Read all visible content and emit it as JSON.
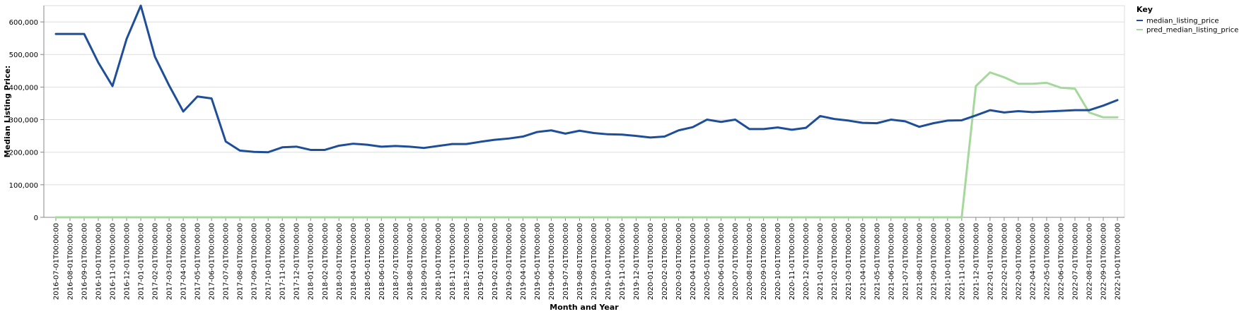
{
  "chart_data": {
    "type": "line",
    "xlabel": "Month and Year",
    "ylabel": "Median Listing Price:",
    "ylim": [
      0,
      650000
    ],
    "yticks": [
      0,
      100000,
      200000,
      300000,
      400000,
      500000,
      600000
    ],
    "ytick_labels": [
      "0",
      "100,000",
      "200,000",
      "300,000",
      "400,000",
      "500,000",
      "600,000"
    ],
    "grid": true,
    "legend": {
      "title": "Key",
      "placement": "right"
    },
    "categories": [
      "2016-07-01T00:00:00",
      "2016-08-01T00:00:00",
      "2016-09-01T00:00:00",
      "2016-10-01T00:00:00",
      "2016-11-01T00:00:00",
      "2016-12-01T00:00:00",
      "2017-01-01T00:00:00",
      "2017-02-01T00:00:00",
      "2017-03-01T00:00:00",
      "2017-04-01T00:00:00",
      "2017-05-01T00:00:00",
      "2017-06-01T00:00:00",
      "2017-07-01T00:00:00",
      "2017-08-01T00:00:00",
      "2017-09-01T00:00:00",
      "2017-10-01T00:00:00",
      "2017-11-01T00:00:00",
      "2017-12-01T00:00:00",
      "2018-01-01T00:00:00",
      "2018-02-01T00:00:00",
      "2018-03-01T00:00:00",
      "2018-04-01T00:00:00",
      "2018-05-01T00:00:00",
      "2018-06-01T00:00:00",
      "2018-07-01T00:00:00",
      "2018-08-01T00:00:00",
      "2018-09-01T00:00:00",
      "2018-10-01T00:00:00",
      "2018-11-01T00:00:00",
      "2018-12-01T00:00:00",
      "2019-01-01T00:00:00",
      "2019-02-01T00:00:00",
      "2019-03-01T00:00:00",
      "2019-04-01T00:00:00",
      "2019-05-01T00:00:00",
      "2019-06-01T00:00:00",
      "2019-07-01T00:00:00",
      "2019-08-01T00:00:00",
      "2019-09-01T00:00:00",
      "2019-10-01T00:00:00",
      "2019-11-01T00:00:00",
      "2019-12-01T00:00:00",
      "2020-01-01T00:00:00",
      "2020-02-01T00:00:00",
      "2020-03-01T00:00:00",
      "2020-04-01T00:00:00",
      "2020-05-01T00:00:00",
      "2020-06-01T00:00:00",
      "2020-07-01T00:00:00",
      "2020-08-01T00:00:00",
      "2020-09-01T00:00:00",
      "2020-10-01T00:00:00",
      "2020-11-01T00:00:00",
      "2020-12-01T00:00:00",
      "2021-01-01T00:00:00",
      "2021-02-01T00:00:00",
      "2021-03-01T00:00:00",
      "2021-04-01T00:00:00",
      "2021-05-01T00:00:00",
      "2021-06-01T00:00:00",
      "2021-07-01T00:00:00",
      "2021-08-01T00:00:00",
      "2021-09-01T00:00:00",
      "2021-10-01T00:00:00",
      "2021-11-01T00:00:00",
      "2021-12-01T00:00:00",
      "2022-01-01T00:00:00",
      "2022-02-01T00:00:00",
      "2022-03-01T00:00:00",
      "2022-04-01T00:00:00",
      "2022-05-01T00:00:00",
      "2022-06-01T00:00:00",
      "2022-07-01T00:00:00",
      "2022-08-01T00:00:00",
      "2022-09-01T00:00:00",
      "2022-10-01T00:00:00"
    ],
    "series": [
      {
        "name": "median_listing_price",
        "color": "#1f4e99",
        "values": [
          563000,
          563000,
          563000,
          475000,
          403000,
          548000,
          650000,
          493000,
          405000,
          325000,
          371000,
          365000,
          233000,
          205000,
          201000,
          200000,
          215000,
          217000,
          207000,
          207000,
          220000,
          226000,
          223000,
          217000,
          219000,
          217000,
          213000,
          219000,
          225000,
          225000,
          232000,
          238000,
          242000,
          248000,
          262000,
          267000,
          257000,
          266000,
          259000,
          255000,
          254000,
          250000,
          245000,
          248000,
          267000,
          277000,
          300000,
          293000,
          300000,
          271000,
          271000,
          276000,
          269000,
          275000,
          311000,
          302000,
          297000,
          290000,
          289000,
          300000,
          295000,
          278000,
          289000,
          297000,
          298000,
          313000,
          329000,
          322000,
          326000,
          323000,
          325000,
          327000,
          329000,
          329000,
          343000,
          360000
        ]
      },
      {
        "name": "pred_median_listing_price",
        "color": "#a5d99b",
        "values": [
          0,
          0,
          0,
          0,
          0,
          0,
          0,
          0,
          0,
          0,
          0,
          0,
          0,
          0,
          0,
          0,
          0,
          0,
          0,
          0,
          0,
          0,
          0,
          0,
          0,
          0,
          0,
          0,
          0,
          0,
          0,
          0,
          0,
          0,
          0,
          0,
          0,
          0,
          0,
          0,
          0,
          0,
          0,
          0,
          0,
          0,
          0,
          0,
          0,
          0,
          0,
          0,
          0,
          0,
          0,
          0,
          0,
          0,
          0,
          0,
          0,
          0,
          0,
          0,
          0,
          403000,
          445000,
          430000,
          410000,
          410000,
          413000,
          398000,
          395000,
          322000,
          307000,
          307000
        ]
      }
    ]
  }
}
